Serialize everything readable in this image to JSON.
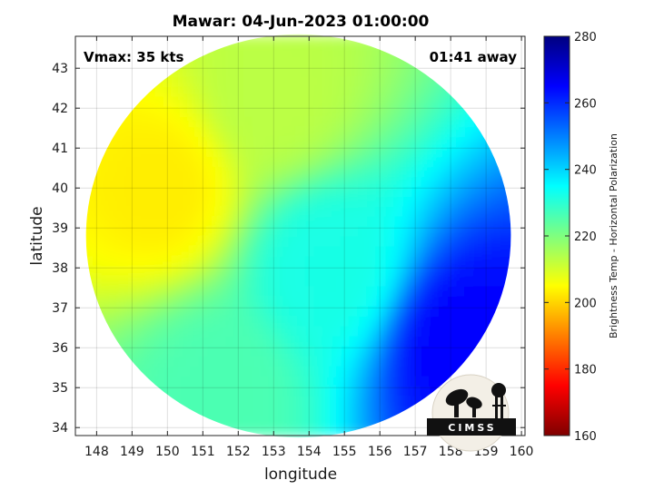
{
  "chart_data": {
    "type": "heatmap",
    "title": "Mawar: 04-Jun-2023 01:00:00",
    "xlabel": "longitude",
    "ylabel": "latitude",
    "xlim": [
      147.4,
      160.1
    ],
    "ylim": [
      33.8,
      43.8
    ],
    "x_ticks": [
      148,
      149,
      150,
      151,
      152,
      153,
      154,
      155,
      156,
      157,
      158,
      159,
      160
    ],
    "y_ticks": [
      34,
      35,
      36,
      37,
      38,
      39,
      40,
      41,
      42,
      43
    ],
    "grid": true,
    "annotations": {
      "vmax": "Vmax: 35 kts",
      "time_away": "01:41 away"
    },
    "colorbar": {
      "label": "Brightness Temp - Horizontal Polarization",
      "range": [
        160,
        280
      ],
      "ticks": [
        160,
        180,
        200,
        220,
        240,
        260,
        280
      ],
      "colormap": "jet",
      "stops": [
        "#7f0000",
        "#ff0000",
        "#ff7f00",
        "#ffff00",
        "#7fff7f",
        "#00ffff",
        "#007fff",
        "#0000ff",
        "#00007f"
      ]
    },
    "field": {
      "center_lon": 153.7,
      "center_lat": 38.8,
      "swath_radius_lon": 6.0,
      "swath_radius_lat": 5.05,
      "regions": [
        {
          "name": "west-warm",
          "lon": 149.8,
          "lat": 40.0,
          "value": 203
        },
        {
          "name": "north",
          "lon": 153.0,
          "lat": 42.3,
          "value": 213
        },
        {
          "name": "central",
          "lon": 154.5,
          "lat": 38.0,
          "value": 232
        },
        {
          "name": "southeast-cold",
          "lon": 158.5,
          "lat": 36.0,
          "value": 265
        },
        {
          "name": "southwest",
          "lon": 151.5,
          "lat": 35.0,
          "value": 226
        }
      ]
    }
  },
  "logo": {
    "text": "CIMSS"
  }
}
